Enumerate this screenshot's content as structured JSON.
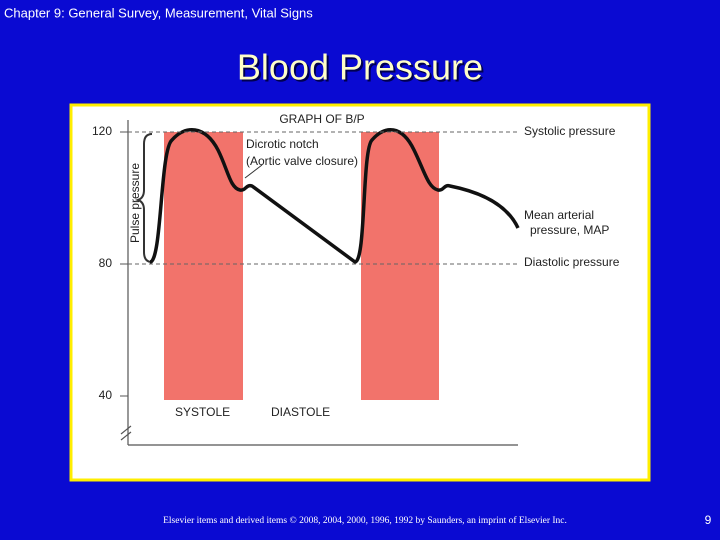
{
  "header": {
    "chapter": "Chapter 9: General Survey, Measurement, Vital Signs",
    "title": "Blood Pressure"
  },
  "figure": {
    "title": "GRAPH OF B/P",
    "y_axis_label": "Pulse pressure",
    "yticks": [
      120,
      80,
      40
    ],
    "annotations": {
      "notch": "Dicrotic notch",
      "notch_detail": "(Aortic valve closure)",
      "systolic": "Systolic pressure",
      "map_line1": "Mean arterial",
      "map_line2": "pressure, MAP",
      "diastolic": "Diastolic pressure"
    },
    "phases": [
      "SYSTOLE",
      "DIASTOLE"
    ]
  },
  "footer": {
    "copyright": "Elsevier items and derived items © 2008, 2004, 2000, 1996, 1992 by Saunders, an imprint of Elsevier Inc.",
    "page": "9"
  }
}
